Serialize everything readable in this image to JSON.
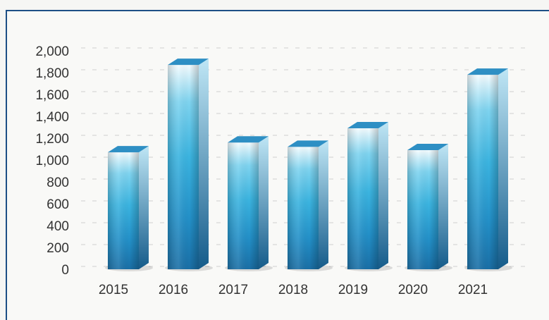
{
  "chart_data": {
    "type": "bar",
    "title": "",
    "xlabel": "",
    "ylabel": "",
    "categories": [
      "2015",
      "2016",
      "2017",
      "2018",
      "2019",
      "2020",
      "2021"
    ],
    "values": [
      1070,
      1870,
      1160,
      1120,
      1290,
      1090,
      1780
    ],
    "ylim": [
      0,
      2000
    ],
    "yticks": [
      "0",
      "200",
      "400",
      "600",
      "800",
      "1,000",
      "1,200",
      "1,400",
      "1,600",
      "1,800",
      "2,000"
    ],
    "grid": true,
    "legend": "none",
    "colors": {
      "bar_light": "#e8f8ff",
      "bar_mid": "#4cc0e6",
      "bar_dark": "#1a6fa6",
      "bar_top": "#2e8fc4",
      "frame": "#1d4f86",
      "grid": "#cfcfcf",
      "text": "#333333"
    }
  }
}
